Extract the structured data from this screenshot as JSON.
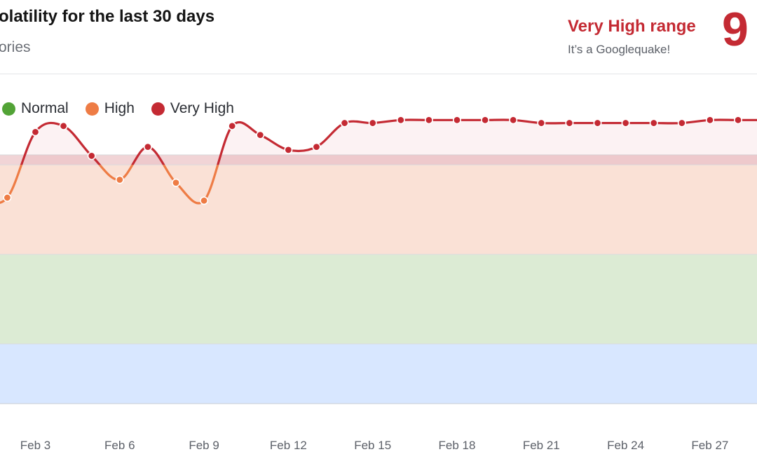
{
  "header": {
    "title": "olatility for the last 30 days",
    "subtitle": "ories"
  },
  "status": {
    "range_label": "Very High range",
    "range_sub": "It’s a Googlequake!",
    "score": "9",
    "color": "#c42a33"
  },
  "legend": [
    {
      "label": "Normal",
      "color": "#52a336"
    },
    {
      "label": "High",
      "color": "#ee7c45"
    },
    {
      "label": "Very High",
      "color": "#c42a33"
    }
  ],
  "chart_data": {
    "type": "line",
    "x_tick_labels": [
      "Feb 3",
      "Feb 6",
      "Feb 9",
      "Feb 12",
      "Feb 15",
      "Feb 18",
      "Feb 21",
      "Feb 24",
      "Feb 27"
    ],
    "bands": [
      {
        "name": "Very High",
        "from": 8.0,
        "to": 10.0,
        "color": "#f1d4d6"
      },
      {
        "name": "High",
        "from": 5.0,
        "to": 8.0,
        "color": "#fae1d6"
      },
      {
        "name": "Normal",
        "from": 2.0,
        "to": 5.0,
        "color": "#dcebd4"
      },
      {
        "name": "Low",
        "from": 0.0,
        "to": 2.0,
        "color": "#d8e7ff"
      }
    ],
    "ylim": [
      0,
      10
    ],
    "grid": true,
    "points": [
      {
        "date": "Feb 1",
        "value": 6.8
      },
      {
        "date": "Feb 2",
        "value": 6.9
      },
      {
        "date": "Feb 3",
        "value": 9.1
      },
      {
        "date": "Feb 4",
        "value": 9.3
      },
      {
        "date": "Feb 5",
        "value": 8.3
      },
      {
        "date": "Feb 6",
        "value": 7.5
      },
      {
        "date": "Feb 7",
        "value": 8.6
      },
      {
        "date": "Feb 8",
        "value": 7.4
      },
      {
        "date": "Feb 9",
        "value": 6.8
      },
      {
        "date": "Feb 10",
        "value": 9.3
      },
      {
        "date": "Feb 11",
        "value": 9.0
      },
      {
        "date": "Feb 12",
        "value": 8.5
      },
      {
        "date": "Feb 13",
        "value": 8.6
      },
      {
        "date": "Feb 14",
        "value": 9.4
      },
      {
        "date": "Feb 15",
        "value": 9.4
      },
      {
        "date": "Feb 16",
        "value": 9.5
      },
      {
        "date": "Feb 17",
        "value": 9.5
      },
      {
        "date": "Feb 18",
        "value": 9.5
      },
      {
        "date": "Feb 19",
        "value": 9.5
      },
      {
        "date": "Feb 20",
        "value": 9.5
      },
      {
        "date": "Feb 21",
        "value": 9.4
      },
      {
        "date": "Feb 22",
        "value": 9.4
      },
      {
        "date": "Feb 23",
        "value": 9.4
      },
      {
        "date": "Feb 24",
        "value": 9.4
      },
      {
        "date": "Feb 25",
        "value": 9.4
      },
      {
        "date": "Feb 26",
        "value": 9.4
      },
      {
        "date": "Feb 27",
        "value": 9.5
      },
      {
        "date": "Feb 28",
        "value": 9.5
      },
      {
        "date": "Feb 29",
        "value": 9.5
      }
    ]
  }
}
